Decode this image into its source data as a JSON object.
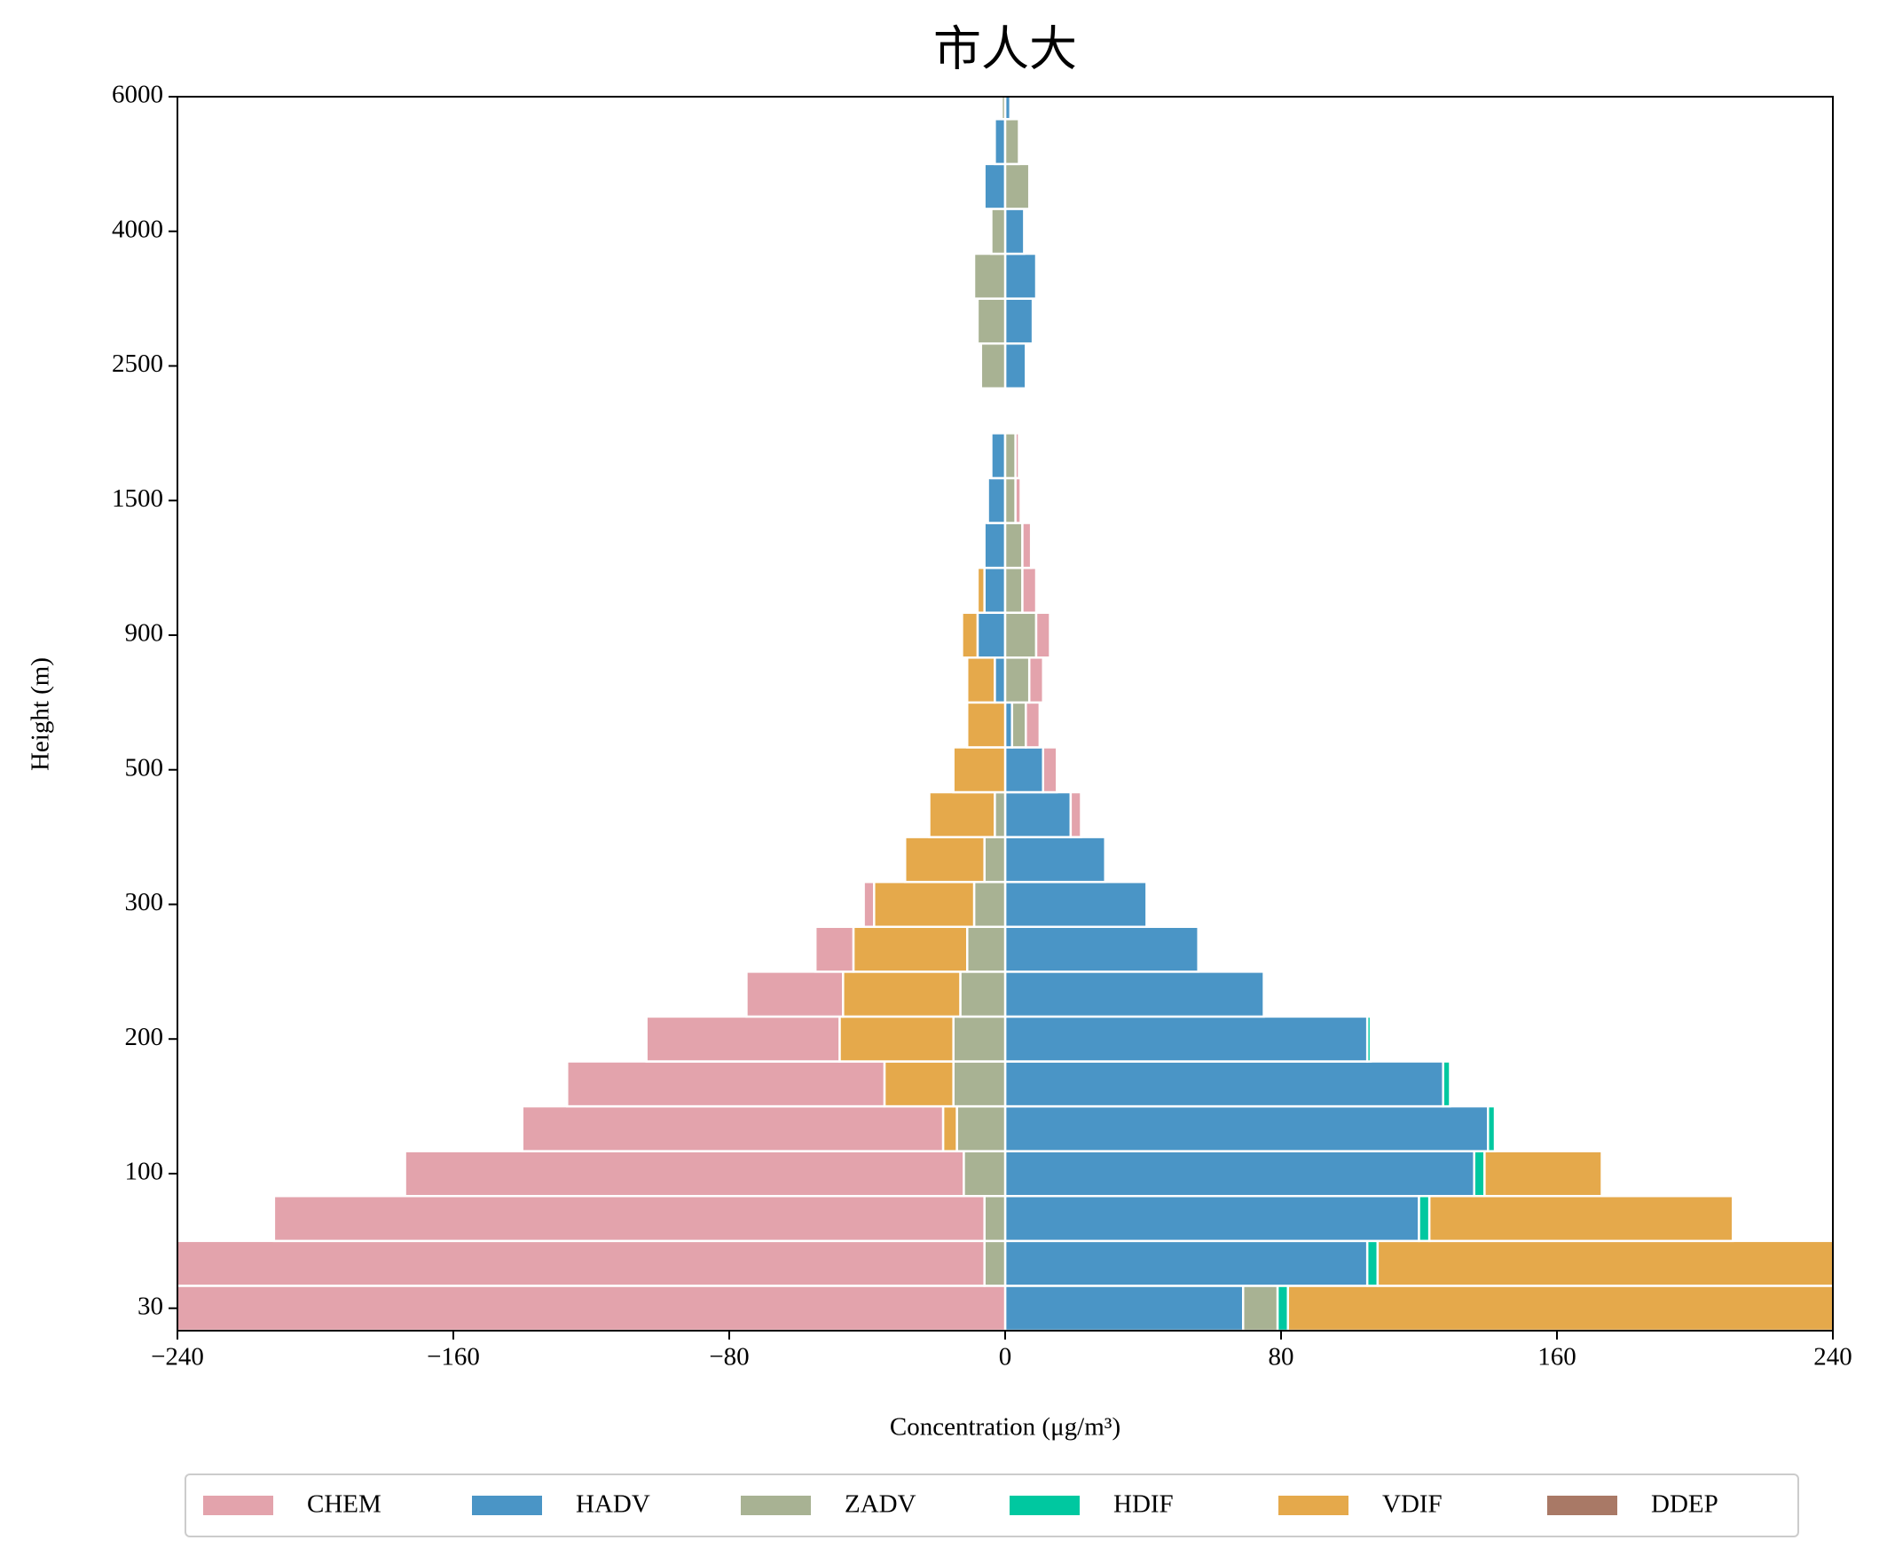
{
  "chart_data": {
    "type": "diverging-stacked-barh",
    "title": "市人大",
    "xlabel": "Concentration (μg/m³)",
    "ylabel": "Height (m)",
    "categories": [
      "30",
      null,
      null,
      "100",
      null,
      null,
      "200",
      null,
      null,
      "300",
      null,
      null,
      "500",
      null,
      null,
      "900",
      null,
      null,
      "1500",
      null,
      null,
      "2500",
      null,
      null,
      "4000",
      null,
      null,
      "6000"
    ],
    "xlim": [
      -240,
      240
    ],
    "xticks": [
      {
        "value": -240,
        "label": "−240"
      },
      {
        "value": -160,
        "label": "−160"
      },
      {
        "value": -80,
        "label": "−80"
      },
      0,
      80,
      160,
      240
    ],
    "legend": "bottom",
    "series": [
      {
        "name": "CHEM",
        "color": "#e3a3ac",
        "values": [
          -250,
          -245,
          -206,
          -162,
          -122,
          -92,
          -56,
          -28,
          -11,
          -3,
          0,
          3,
          4,
          4,
          4,
          4,
          4,
          2.5,
          1.5,
          1,
          0,
          0,
          0,
          0,
          0,
          0,
          0,
          0
        ]
      },
      {
        "name": "HADV",
        "color": "#4a95c6",
        "values": [
          69,
          105,
          120,
          136,
          140,
          127,
          105,
          75,
          56,
          41,
          29,
          19,
          11,
          2,
          -3,
          -8,
          -6,
          -6,
          -5,
          -4,
          0,
          6,
          8,
          9,
          5.5,
          -6,
          -3,
          1.5
        ]
      },
      {
        "name": "ZADV",
        "color": "#a8b293",
        "values": [
          10,
          -6,
          -6,
          -12,
          -14,
          -15,
          -15,
          -13,
          -11,
          -9,
          -6,
          -3,
          0,
          4,
          7,
          9,
          5,
          5,
          3,
          3,
          0,
          -7,
          -8,
          -9,
          -4,
          7,
          4,
          -1
        ]
      },
      {
        "name": "HDIF",
        "color": "#00c8a0",
        "values": [
          3,
          3,
          3,
          3,
          2,
          2,
          1,
          0,
          0,
          0,
          0,
          0,
          0,
          0,
          0,
          0,
          0,
          0,
          0,
          0,
          0,
          0,
          0,
          0,
          0,
          0,
          0,
          0
        ]
      },
      {
        "name": "VDIF",
        "color": "#e5a94b",
        "values": [
          170,
          140,
          88,
          34,
          -4,
          -20,
          -33,
          -34,
          -33,
          -29,
          -23,
          -19,
          -15,
          -11,
          -8,
          -4.5,
          -2,
          0,
          0,
          0,
          0,
          0,
          0,
          0,
          0,
          0,
          0,
          0
        ]
      },
      {
        "name": "DDEP",
        "color": "#a97966",
        "values": [
          0,
          0,
          0,
          0,
          0,
          0,
          0,
          0,
          0,
          0,
          0,
          0,
          0,
          0,
          0,
          0,
          0,
          0,
          0,
          0,
          0,
          0,
          0,
          0,
          0,
          0,
          0,
          0
        ]
      }
    ]
  }
}
